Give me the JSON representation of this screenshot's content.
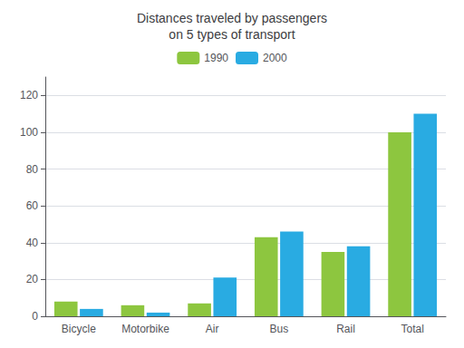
{
  "chart_data": {
    "type": "bar",
    "title": "Distances traveled by passengers\non 5 types of transport",
    "categories": [
      "Bicycle",
      "Motorbike",
      "Air",
      "Bus",
      "Rail",
      "Total"
    ],
    "series": [
      {
        "name": "1990",
        "color": "#8dc63f",
        "values": [
          8,
          6,
          7,
          43,
          35,
          100
        ]
      },
      {
        "name": "2000",
        "color": "#29abe2",
        "values": [
          4,
          2,
          21,
          46,
          38,
          110
        ]
      }
    ],
    "ylim": [
      0,
      130
    ],
    "yticks": [
      0,
      20,
      40,
      60,
      80,
      100,
      120
    ],
    "grid": true,
    "legend": "top"
  }
}
